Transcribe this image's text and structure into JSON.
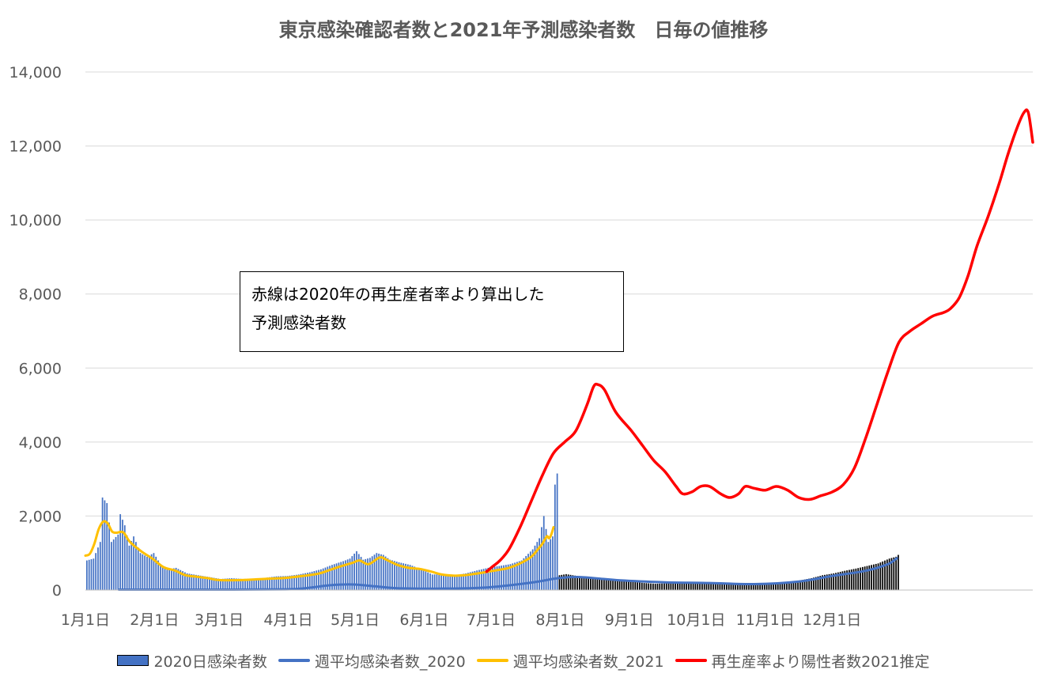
{
  "chart_data": {
    "type": "bar+line",
    "title": "東京感染確認者数と2021年予測感染者数　日毎の値推移",
    "xlabel": "",
    "ylabel": "",
    "ylim": [
      0,
      14000
    ],
    "grid": true,
    "legend_position": "bottom",
    "y_ticks": [
      "0",
      "2,000",
      "4,000",
      "6,000",
      "8,000",
      "10,000",
      "12,000",
      "14,000"
    ],
    "x_ticks": [
      {
        "day": 0,
        "label": "1月1日"
      },
      {
        "day": 31,
        "label": "2月1日"
      },
      {
        "day": 60,
        "label": "3月1日"
      },
      {
        "day": 91,
        "label": "4月1日"
      },
      {
        "day": 121,
        "label": "5月1日"
      },
      {
        "day": 152,
        "label": "6月1日"
      },
      {
        "day": 182,
        "label": "7月1日"
      },
      {
        "day": 213,
        "label": "8月1日"
      },
      {
        "day": 244,
        "label": "9月1日"
      },
      {
        "day": 274,
        "label": "10月1日"
      },
      {
        "day": 305,
        "label": "11月1日"
      },
      {
        "day": 335,
        "label": "12月1日"
      }
    ],
    "annotation": {
      "line1": "赤線は2020年の再生産者率より算出した",
      "line2": "予測感染者数"
    },
    "series": [
      {
        "name": "2020日感染者数",
        "kind": "bar",
        "color": "#4472c4",
        "color_late": "#000000",
        "late_from_day": 212,
        "points": [
          [
            0,
            800
          ],
          [
            3,
            850
          ],
          [
            6,
            1300
          ],
          [
            7,
            2500
          ],
          [
            9,
            2350
          ],
          [
            11,
            1300
          ],
          [
            14,
            1500
          ],
          [
            15,
            2050
          ],
          [
            17,
            1750
          ],
          [
            19,
            1200
          ],
          [
            21,
            1450
          ],
          [
            24,
            1000
          ],
          [
            27,
            900
          ],
          [
            30,
            1000
          ],
          [
            33,
            700
          ],
          [
            36,
            550
          ],
          [
            40,
            600
          ],
          [
            45,
            450
          ],
          [
            50,
            400
          ],
          [
            55,
            350
          ],
          [
            60,
            300
          ],
          [
            65,
            320
          ],
          [
            70,
            300
          ],
          [
            75,
            310
          ],
          [
            80,
            330
          ],
          [
            85,
            370
          ],
          [
            90,
            380
          ],
          [
            95,
            420
          ],
          [
            100,
            480
          ],
          [
            105,
            560
          ],
          [
            110,
            680
          ],
          [
            115,
            780
          ],
          [
            118,
            850
          ],
          [
            121,
            1050
          ],
          [
            124,
            820
          ],
          [
            127,
            870
          ],
          [
            130,
            1000
          ],
          [
            133,
            950
          ],
          [
            136,
            820
          ],
          [
            140,
            750
          ],
          [
            145,
            680
          ],
          [
            150,
            560
          ],
          [
            155,
            420
          ],
          [
            160,
            430
          ],
          [
            165,
            400
          ],
          [
            170,
            450
          ],
          [
            175,
            530
          ],
          [
            180,
            600
          ],
          [
            185,
            650
          ],
          [
            190,
            700
          ],
          [
            195,
            800
          ],
          [
            200,
            1100
          ],
          [
            203,
            1400
          ],
          [
            205,
            2000
          ],
          [
            207,
            1300
          ],
          [
            209,
            1450
          ],
          [
            210,
            2850
          ],
          [
            211,
            3150
          ],
          [
            212,
            400
          ],
          [
            215,
            430
          ],
          [
            220,
            380
          ],
          [
            225,
            350
          ],
          [
            230,
            320
          ],
          [
            235,
            280
          ],
          [
            240,
            250
          ],
          [
            245,
            220
          ],
          [
            250,
            190
          ],
          [
            255,
            170
          ],
          [
            260,
            180
          ],
          [
            265,
            190
          ],
          [
            270,
            200
          ],
          [
            275,
            210
          ],
          [
            280,
            200
          ],
          [
            285,
            190
          ],
          [
            290,
            190
          ],
          [
            295,
            180
          ],
          [
            300,
            170
          ],
          [
            305,
            180
          ],
          [
            310,
            200
          ],
          [
            315,
            220
          ],
          [
            320,
            260
          ],
          [
            325,
            320
          ],
          [
            330,
            400
          ],
          [
            335,
            450
          ],
          [
            340,
            520
          ],
          [
            345,
            580
          ],
          [
            350,
            650
          ],
          [
            355,
            720
          ],
          [
            360,
            850
          ],
          [
            363,
            900
          ],
          [
            364,
            950
          ]
        ]
      },
      {
        "name": "週平均感染者数_2020",
        "kind": "line",
        "color": "#4472c4",
        "points": [
          [
            15,
            10
          ],
          [
            50,
            10
          ],
          [
            90,
            20
          ],
          [
            100,
            60
          ],
          [
            110,
            130
          ],
          [
            120,
            150
          ],
          [
            130,
            100
          ],
          [
            140,
            50
          ],
          [
            160,
            40
          ],
          [
            180,
            70
          ],
          [
            200,
            200
          ],
          [
            212,
            320
          ],
          [
            222,
            350
          ],
          [
            240,
            260
          ],
          [
            260,
            210
          ],
          [
            280,
            190
          ],
          [
            300,
            160
          ],
          [
            320,
            230
          ],
          [
            335,
            380
          ],
          [
            350,
            520
          ],
          [
            360,
            700
          ],
          [
            364,
            860
          ]
        ]
      },
      {
        "name": "週平均感染者数_2021",
        "kind": "line",
        "color": "#ffc000",
        "points": [
          [
            0,
            930
          ],
          [
            2,
            980
          ],
          [
            4,
            1250
          ],
          [
            6,
            1650
          ],
          [
            8,
            1850
          ],
          [
            10,
            1800
          ],
          [
            12,
            1580
          ],
          [
            14,
            1550
          ],
          [
            17,
            1560
          ],
          [
            20,
            1300
          ],
          [
            25,
            1050
          ],
          [
            30,
            850
          ],
          [
            35,
            620
          ],
          [
            40,
            530
          ],
          [
            45,
            400
          ],
          [
            50,
            360
          ],
          [
            55,
            320
          ],
          [
            60,
            270
          ],
          [
            70,
            270
          ],
          [
            80,
            300
          ],
          [
            90,
            330
          ],
          [
            100,
            400
          ],
          [
            105,
            450
          ],
          [
            110,
            550
          ],
          [
            115,
            650
          ],
          [
            120,
            740
          ],
          [
            123,
            800
          ],
          [
            127,
            700
          ],
          [
            132,
            880
          ],
          [
            135,
            820
          ],
          [
            140,
            680
          ],
          [
            145,
            600
          ],
          [
            150,
            570
          ],
          [
            155,
            500
          ],
          [
            160,
            420
          ],
          [
            165,
            390
          ],
          [
            170,
            400
          ],
          [
            175,
            440
          ],
          [
            180,
            490
          ],
          [
            185,
            540
          ],
          [
            190,
            600
          ],
          [
            195,
            720
          ],
          [
            200,
            900
          ],
          [
            203,
            1100
          ],
          [
            205,
            1250
          ],
          [
            207,
            1450
          ],
          [
            208,
            1400
          ],
          [
            209,
            1500
          ],
          [
            210,
            1700
          ]
        ]
      },
      {
        "name": "再生産率より陽性者数2021推定",
        "kind": "line",
        "color": "#ff0000",
        "points": [
          [
            180,
            500
          ],
          [
            183,
            650
          ],
          [
            186,
            800
          ],
          [
            190,
            1100
          ],
          [
            195,
            1700
          ],
          [
            200,
            2400
          ],
          [
            205,
            3100
          ],
          [
            210,
            3700
          ],
          [
            215,
            4000
          ],
          [
            220,
            4300
          ],
          [
            225,
            5000
          ],
          [
            228,
            5500
          ],
          [
            230,
            5550
          ],
          [
            233,
            5400
          ],
          [
            238,
            4800
          ],
          [
            245,
            4300
          ],
          [
            250,
            3900
          ],
          [
            255,
            3500
          ],
          [
            260,
            3200
          ],
          [
            265,
            2800
          ],
          [
            268,
            2600
          ],
          [
            272,
            2650
          ],
          [
            276,
            2800
          ],
          [
            280,
            2800
          ],
          [
            285,
            2600
          ],
          [
            289,
            2500
          ],
          [
            293,
            2600
          ],
          [
            296,
            2800
          ],
          [
            300,
            2750
          ],
          [
            305,
            2700
          ],
          [
            310,
            2800
          ],
          [
            315,
            2700
          ],
          [
            320,
            2500
          ],
          [
            325,
            2450
          ],
          [
            330,
            2550
          ],
          [
            335,
            2650
          ],
          [
            340,
            2850
          ],
          [
            345,
            3300
          ],
          [
            350,
            4100
          ],
          [
            355,
            5000
          ],
          [
            360,
            5900
          ],
          [
            365,
            6700
          ],
          [
            370,
            7000
          ],
          [
            375,
            7200
          ],
          [
            380,
            7400
          ],
          [
            385,
            7500
          ],
          [
            388,
            7600
          ],
          [
            392,
            7900
          ],
          [
            396,
            8500
          ],
          [
            400,
            9300
          ],
          [
            405,
            10100
          ],
          [
            410,
            11000
          ],
          [
            414,
            11800
          ],
          [
            418,
            12500
          ],
          [
            421,
            12900
          ],
          [
            423,
            12900
          ],
          [
            425,
            12100
          ]
        ]
      }
    ],
    "x_domain": [
      0,
      425
    ]
  }
}
